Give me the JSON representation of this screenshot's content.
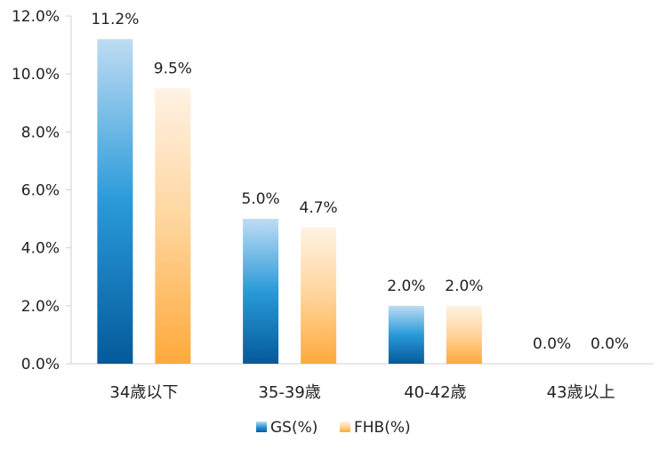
{
  "chart_data": {
    "type": "bar",
    "categories": [
      "34歳以下",
      "35-39歳",
      "40-42歳",
      "43歳以上"
    ],
    "series": [
      {
        "name": "GS(%)",
        "values": [
          11.2,
          5.0,
          2.0,
          0.0
        ],
        "labels": [
          "11.2%",
          "5.0%",
          "2.0%",
          "0.0%"
        ],
        "color_top": "#bfdcf3",
        "color_mid": "#2a9ad9",
        "color_bottom": "#045a9a"
      },
      {
        "name": "FHB(%)",
        "values": [
          9.5,
          4.7,
          2.0,
          0.0
        ],
        "labels": [
          "9.5%",
          "4.7%",
          "2.0%",
          "0.0%"
        ],
        "color_top": "#fff2e4",
        "color_mid": "#ffd49a",
        "color_bottom": "#ffa93b"
      }
    ],
    "ylim": [
      0,
      12
    ],
    "yticks": [
      "0.0%",
      "2.0%",
      "4.0%",
      "6.0%",
      "8.0%",
      "10.0%",
      "12.0%"
    ],
    "ytick_values": [
      0,
      2,
      4,
      6,
      8,
      10,
      12
    ],
    "legend_position": "bottom",
    "grid": false,
    "title": "",
    "xlabel": "",
    "ylabel": ""
  }
}
